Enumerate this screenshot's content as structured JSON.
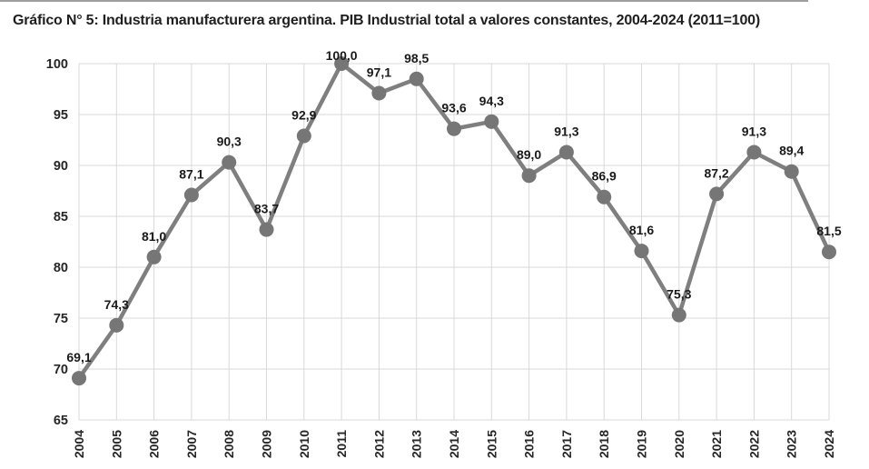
{
  "chart_data": {
    "type": "line",
    "title": "Gráfico N° 5: Industria manufacturera argentina. PIB Industrial total a valores constantes, 2004-2024 (2011=100)",
    "categories": [
      "2004",
      "2005",
      "2006",
      "2007",
      "2008",
      "2009",
      "2010",
      "2011",
      "2012",
      "2013",
      "2014",
      "2015",
      "2016",
      "2017",
      "2018",
      "2019",
      "2020",
      "2021",
      "2022",
      "2023",
      "2024"
    ],
    "values": [
      69.1,
      74.3,
      81.0,
      87.1,
      90.3,
      83.7,
      92.9,
      100.0,
      97.1,
      98.5,
      93.6,
      94.3,
      89.0,
      91.3,
      86.9,
      81.6,
      75.3,
      87.2,
      91.3,
      89.4,
      81.5
    ],
    "point_labels": [
      "69,1",
      "74,3",
      "81,0",
      "87,1",
      "90,3",
      "83,7",
      "92,9",
      "100,0",
      "97,1",
      "98,5",
      "93,6",
      "94,3",
      "89,0",
      "91,3",
      "86,9",
      "81,6",
      "75,3",
      "87,2",
      "91,3",
      "89,4",
      "81,5"
    ],
    "ylim": [
      65,
      100
    ],
    "yticks": [
      "65",
      "70",
      "75",
      "80",
      "85",
      "90",
      "95",
      "100"
    ],
    "ytick_values": [
      65,
      70,
      75,
      80,
      85,
      90,
      95,
      100
    ],
    "grid": true,
    "legend": "none",
    "xlabel": "",
    "ylabel": "",
    "colors": {
      "line": "#7f7f7f",
      "marker": "#767676",
      "grid": "#d9d9d9",
      "data_label": "#1a1a1a",
      "axis_text": "#262626",
      "background": "#ffffff",
      "top_border": "#9e9e9e"
    }
  }
}
